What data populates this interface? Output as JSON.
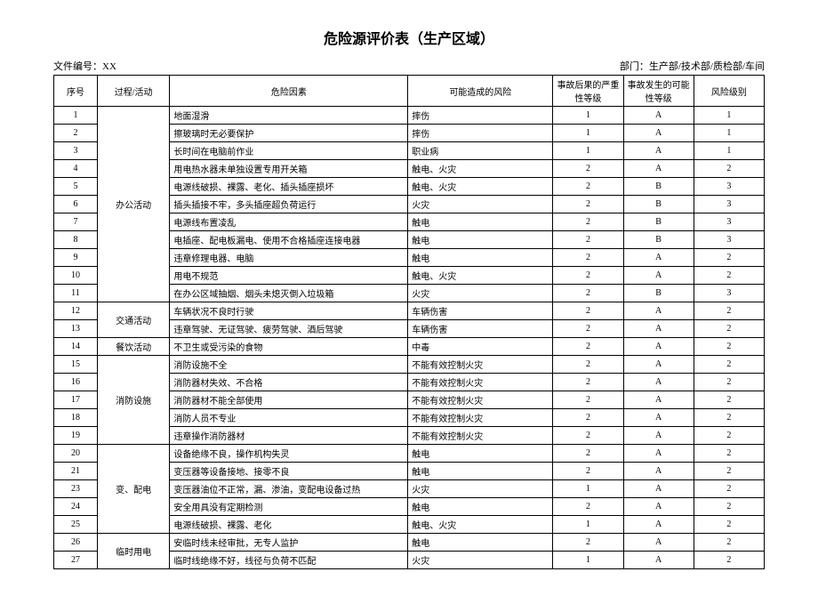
{
  "title": "危险源评价表（生产区域）",
  "doc_no_label": "文件编号：",
  "doc_no_value": "XX",
  "dept_label": "部门：",
  "dept_value": "生产部/技术部/质检部/车间",
  "headers": {
    "seq": "序号",
    "activity": "过程/活动",
    "factor": "危险因素",
    "possible_risk": "可能造成的风险",
    "severity": "事故后果的严重性等级",
    "probability": "事故发生的可能性等级",
    "level": "风险级别"
  },
  "groups": [
    {
      "activity": "办公活动",
      "rows": [
        {
          "seq": "1",
          "factor": "地面湿滑",
          "risk": "摔伤",
          "sev": "1",
          "prob": "A",
          "level": "1"
        },
        {
          "seq": "2",
          "factor": "擦玻璃时无必要保护",
          "risk": "摔伤",
          "sev": "1",
          "prob": "A",
          "level": "1"
        },
        {
          "seq": "3",
          "factor": "长时间在电脑前作业",
          "risk": "职业病",
          "sev": "1",
          "prob": "A",
          "level": "1"
        },
        {
          "seq": "4",
          "factor": "用电热水器未单独设置专用开关箱",
          "risk": "触电、火灾",
          "sev": "2",
          "prob": "A",
          "level": "2"
        },
        {
          "seq": "5",
          "factor": "电源线破损、裸露、老化、插头插座损坏",
          "risk": "触电、火灾",
          "sev": "2",
          "prob": "B",
          "level": "3"
        },
        {
          "seq": "6",
          "factor": "插头插接不牢，多头插座超负荷运行",
          "risk": "火灾",
          "sev": "2",
          "prob": "B",
          "level": "3"
        },
        {
          "seq": "7",
          "factor": "电源线布置凌乱",
          "risk": "触电",
          "sev": "2",
          "prob": "B",
          "level": "3"
        },
        {
          "seq": "8",
          "factor": "电插座、配电板漏电、使用不合格插座连接电器",
          "risk": "触电",
          "sev": "2",
          "prob": "B",
          "level": "3"
        },
        {
          "seq": "9",
          "factor": "违章修理电器、电脑",
          "risk": "触电",
          "sev": "2",
          "prob": "A",
          "level": "2"
        },
        {
          "seq": "10",
          "factor": "用电不规范",
          "risk": "触电、火灾",
          "sev": "2",
          "prob": "A",
          "level": "2"
        },
        {
          "seq": "11",
          "factor": "在办公区域抽烟、烟头未熄灭倒入垃圾箱",
          "risk": "火灾",
          "sev": "2",
          "prob": "B",
          "level": "3"
        }
      ]
    },
    {
      "activity": "交通活动",
      "rows": [
        {
          "seq": "12",
          "factor": "车辆状况不良时行驶",
          "risk": "车辆伤害",
          "sev": "2",
          "prob": "A",
          "level": "2"
        },
        {
          "seq": "13",
          "factor": "违章驾驶、无证驾驶、疲劳驾驶、酒后驾驶",
          "risk": "车辆伤害",
          "sev": "2",
          "prob": "A",
          "level": "2"
        }
      ]
    },
    {
      "activity": "餐饮活动",
      "rows": [
        {
          "seq": "14",
          "factor": "不卫生或受污染的食物",
          "risk": "中毒",
          "sev": "2",
          "prob": "A",
          "level": "2"
        }
      ]
    },
    {
      "activity": "消防设施",
      "rows": [
        {
          "seq": "15",
          "factor": "消防设施不全",
          "risk": "不能有效控制火灾",
          "sev": "2",
          "prob": "A",
          "level": "2"
        },
        {
          "seq": "16",
          "factor": "消防器材失效、不合格",
          "risk": "不能有效控制火灾",
          "sev": "2",
          "prob": "A",
          "level": "2"
        },
        {
          "seq": "17",
          "factor": "消防器材不能全部使用",
          "risk": "不能有效控制火灾",
          "sev": "2",
          "prob": "A",
          "level": "2"
        },
        {
          "seq": "18",
          "factor": "消防人员不专业",
          "risk": "不能有效控制火灾",
          "sev": "2",
          "prob": "A",
          "level": "2"
        },
        {
          "seq": "19",
          "factor": "违章操作消防器材",
          "risk": "不能有效控制火灾",
          "sev": "2",
          "prob": "A",
          "level": "2"
        }
      ]
    },
    {
      "activity": "变、配电",
      "rows": [
        {
          "seq": "20",
          "factor": "设备绝缘不良，操作机构失灵",
          "risk": "触电",
          "sev": "2",
          "prob": "A",
          "level": "2"
        },
        {
          "seq": "21",
          "factor": "变压器等设备接地、接零不良",
          "risk": "触电",
          "sev": "2",
          "prob": "A",
          "level": "2"
        },
        {
          "seq": "23",
          "factor": "变压器油位不正常，漏、渗油，变配电设备过热",
          "risk": "火灾",
          "sev": "1",
          "prob": "A",
          "level": "2"
        },
        {
          "seq": "24",
          "factor": "安全用具没有定期检测",
          "risk": "触电",
          "sev": "2",
          "prob": "A",
          "level": "2"
        },
        {
          "seq": "25",
          "factor": "电源线破损、裸露、老化",
          "risk": "触电、火灾",
          "sev": "1",
          "prob": "A",
          "level": "2"
        }
      ]
    },
    {
      "activity": "临时用电",
      "rows": [
        {
          "seq": "26",
          "factor": "安临时线未经审批，无专人监护",
          "risk": "触电",
          "sev": "2",
          "prob": "A",
          "level": "2"
        },
        {
          "seq": "27",
          "factor": "临时线绝缘不好，线径与负荷不匹配",
          "risk": "火灾",
          "sev": "1",
          "prob": "A",
          "level": "2"
        }
      ]
    }
  ]
}
